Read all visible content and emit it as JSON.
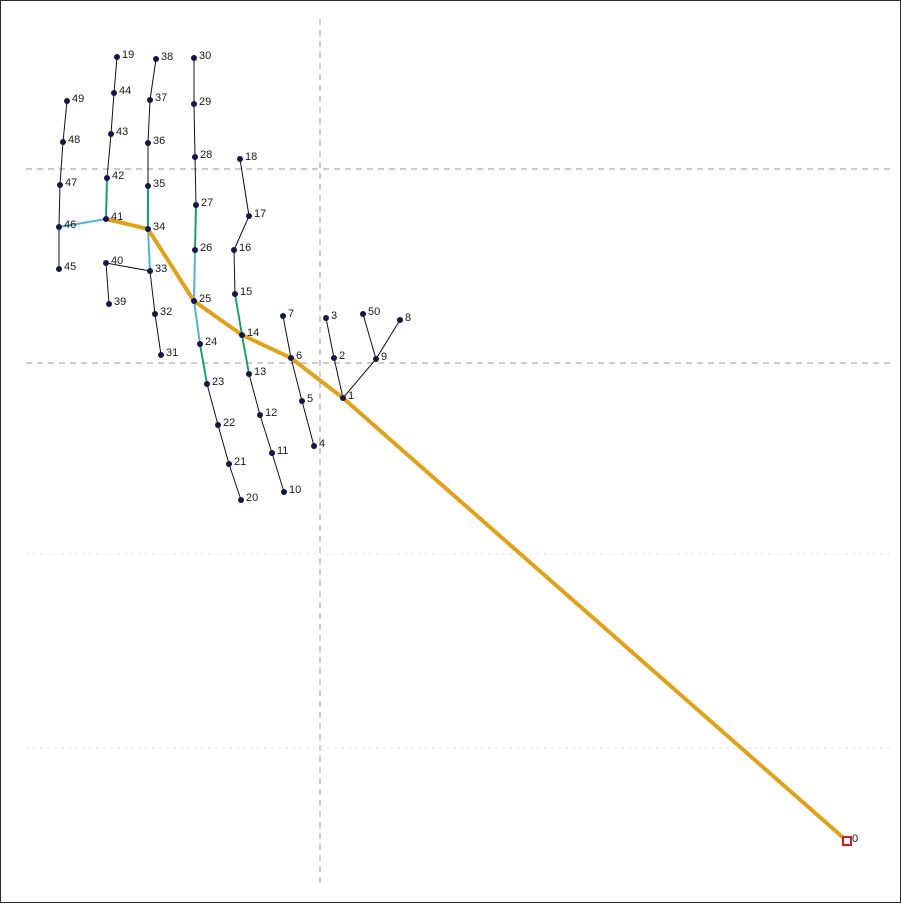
{
  "colors": {
    "background": "#ffffff",
    "frame": "#2b2b2b",
    "guide": "#9a9a9a",
    "grid_faint": "#e6e6e6",
    "bone": "#111111",
    "highlight": "#e0a21a",
    "cyan": "#4fb3dc",
    "teal": "#1aa06e",
    "node": "#15154a",
    "root_marker": "#cc1f1f"
  },
  "nodes": [
    {
      "id": "0",
      "root": true
    },
    {
      "id": "1"
    },
    {
      "id": "2"
    },
    {
      "id": "3"
    },
    {
      "id": "4"
    },
    {
      "id": "5"
    },
    {
      "id": "6"
    },
    {
      "id": "7"
    },
    {
      "id": "8"
    },
    {
      "id": "9"
    },
    {
      "id": "10"
    },
    {
      "id": "11"
    },
    {
      "id": "12"
    },
    {
      "id": "13"
    },
    {
      "id": "14"
    },
    {
      "id": "15"
    },
    {
      "id": "16"
    },
    {
      "id": "17"
    },
    {
      "id": "18"
    },
    {
      "id": "19"
    },
    {
      "id": "20"
    },
    {
      "id": "21"
    },
    {
      "id": "22"
    },
    {
      "id": "23"
    },
    {
      "id": "24"
    },
    {
      "id": "25"
    },
    {
      "id": "26"
    },
    {
      "id": "27"
    },
    {
      "id": "28"
    },
    {
      "id": "29"
    },
    {
      "id": "30"
    },
    {
      "id": "31"
    },
    {
      "id": "32"
    },
    {
      "id": "33"
    },
    {
      "id": "34"
    },
    {
      "id": "35"
    },
    {
      "id": "36"
    },
    {
      "id": "37"
    },
    {
      "id": "38"
    },
    {
      "id": "39"
    },
    {
      "id": "40"
    },
    {
      "id": "41"
    },
    {
      "id": "42"
    },
    {
      "id": "43"
    },
    {
      "id": "44"
    },
    {
      "id": "45"
    },
    {
      "id": "46"
    },
    {
      "id": "47"
    },
    {
      "id": "48"
    },
    {
      "id": "49"
    },
    {
      "id": "50"
    }
  ],
  "edges": [
    [
      "0",
      "1",
      "highlight"
    ],
    [
      "1",
      "6",
      "highlight"
    ],
    [
      "6",
      "14",
      "highlight"
    ],
    [
      "14",
      "25",
      "highlight"
    ],
    [
      "25",
      "34",
      "highlight"
    ],
    [
      "34",
      "41",
      "highlight"
    ],
    [
      "41",
      "46",
      "cyan"
    ],
    [
      "41",
      "42",
      "teal"
    ],
    [
      "34",
      "35",
      "teal"
    ],
    [
      "34",
      "33",
      "cyan"
    ],
    [
      "25",
      "26",
      "cyan"
    ],
    [
      "26",
      "27",
      "teal"
    ],
    [
      "25",
      "24",
      "cyan"
    ],
    [
      "24",
      "23",
      "teal"
    ],
    [
      "14",
      "15",
      "teal"
    ],
    [
      "14",
      "13",
      "teal"
    ],
    [
      "1",
      "2",
      "bone"
    ],
    [
      "2",
      "3",
      "bone"
    ],
    [
      "1",
      "9",
      "bone"
    ],
    [
      "9",
      "8",
      "bone"
    ],
    [
      "9",
      "50",
      "bone"
    ],
    [
      "6",
      "7",
      "bone"
    ],
    [
      "6",
      "5",
      "bone"
    ],
    [
      "5",
      "4",
      "bone"
    ],
    [
      "13",
      "12",
      "bone"
    ],
    [
      "12",
      "11",
      "bone"
    ],
    [
      "11",
      "10",
      "bone"
    ],
    [
      "15",
      "16",
      "bone"
    ],
    [
      "16",
      "17",
      "bone"
    ],
    [
      "17",
      "18",
      "bone"
    ],
    [
      "23",
      "22",
      "bone"
    ],
    [
      "22",
      "21",
      "bone"
    ],
    [
      "21",
      "20",
      "bone"
    ],
    [
      "27",
      "28",
      "bone"
    ],
    [
      "28",
      "29",
      "bone"
    ],
    [
      "29",
      "30",
      "bone"
    ],
    [
      "33",
      "32",
      "bone"
    ],
    [
      "32",
      "31",
      "bone"
    ],
    [
      "33",
      "40",
      "bone"
    ],
    [
      "40",
      "39",
      "bone"
    ],
    [
      "35",
      "36",
      "bone"
    ],
    [
      "36",
      "37",
      "bone"
    ],
    [
      "37",
      "38",
      "bone"
    ],
    [
      "42",
      "43",
      "bone"
    ],
    [
      "43",
      "44",
      "bone"
    ],
    [
      "44",
      "19",
      "bone"
    ],
    [
      "46",
      "47",
      "bone"
    ],
    [
      "47",
      "48",
      "bone"
    ],
    [
      "48",
      "49",
      "bone"
    ],
    [
      "46",
      "45",
      "bone"
    ]
  ]
}
